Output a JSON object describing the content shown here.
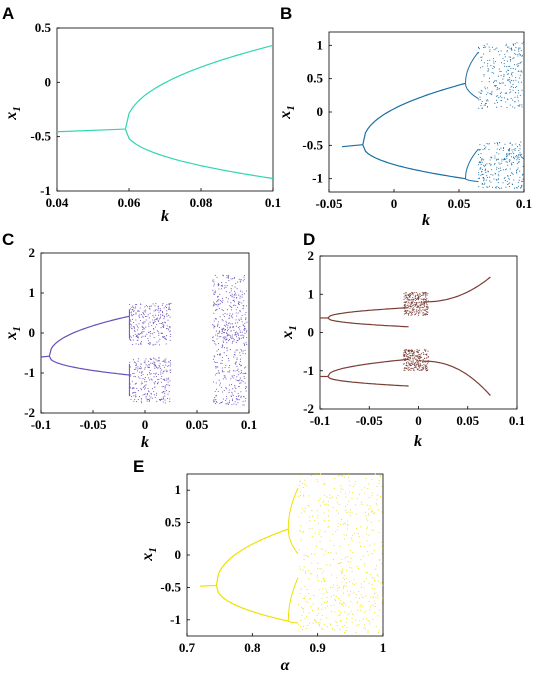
{
  "chart_data": [
    {
      "panel": "A",
      "type": "bifurcation",
      "xlabel": "k",
      "ylabel": "x",
      "ylabel_sub": "1",
      "xlim": [
        0.04,
        0.1
      ],
      "ylim": [
        -1,
        0.5
      ],
      "xticks": [
        "0.04",
        "0.06",
        "0.08",
        "0.1"
      ],
      "yticks": [
        "0.5",
        "0",
        "-0.5",
        "-1"
      ],
      "color": "#2fd6b0",
      "period1": {
        "x_start": 0.04,
        "x_end": 0.059,
        "y_start": -0.455,
        "y_end": -0.43
      },
      "branch_point": 0.059,
      "upper": {
        "x_end": 0.1,
        "y_end": 0.34
      },
      "lower": {
        "x_end": 0.1,
        "y_end": -0.885
      },
      "chaos": []
    },
    {
      "panel": "B",
      "type": "bifurcation",
      "xlabel": "k",
      "ylabel": "x",
      "ylabel_sub": "1",
      "xlim": [
        -0.05,
        0.1
      ],
      "ylim": [
        -1.2,
        1.2
      ],
      "xticks": [
        "-0.05",
        "0",
        "0.05",
        "0.1"
      ],
      "yticks": [
        "1",
        "0.5",
        "0",
        "-0.5",
        "-1"
      ],
      "color": "#1a6fa6",
      "period1": {
        "x_start": -0.04,
        "x_end": -0.024,
        "y_start": -0.52,
        "y_end": -0.49
      },
      "branch_point": -0.024,
      "upper": {
        "x_end": 0.055,
        "y_end": 0.43
      },
      "lower": {
        "x_end": 0.055,
        "y_end": -1.0
      },
      "second_split": 0.055,
      "chaos": [
        {
          "x_start": 0.065,
          "x_end": 0.1,
          "upper": [
            0.05,
            1.05
          ],
          "lower": [
            -1.15,
            -0.45
          ]
        }
      ]
    },
    {
      "panel": "C",
      "type": "bifurcation",
      "xlabel": "k",
      "ylabel": "x",
      "ylabel_sub": "1",
      "xlim": [
        -0.1,
        0.1
      ],
      "ylim": [
        -2,
        2
      ],
      "xticks": [
        "-0.1",
        "-0.05",
        "0",
        "0.05",
        "0.1"
      ],
      "yticks": [
        "2",
        "1",
        "0",
        "-1",
        "-2"
      ],
      "color": "#6a50b8",
      "period1": {
        "x_start": -0.1,
        "x_end": -0.092,
        "y_start": -0.6,
        "y_end": -0.58
      },
      "branch_point": -0.092,
      "upper": {
        "x_end": -0.015,
        "y_end": 0.42
      },
      "lower": {
        "x_end": -0.015,
        "y_end": -1.05
      },
      "second_split": -0.015,
      "chaos": [
        {
          "x_start": -0.015,
          "x_end": 0.025,
          "upper": [
            -0.3,
            0.75
          ],
          "lower": [
            -1.75,
            -0.6
          ]
        },
        {
          "x_start": 0.065,
          "x_end": 0.098,
          "upper": [
            -0.3,
            1.45
          ],
          "lower": [
            -1.8,
            0.2
          ]
        }
      ]
    },
    {
      "panel": "D",
      "type": "bifurcation",
      "xlabel": "k",
      "ylabel": "x",
      "ylabel_sub": "1",
      "xlim": [
        -0.1,
        0.1
      ],
      "ylim": [
        -2,
        2
      ],
      "xticks": [
        "-0.1",
        "-0.05",
        "0",
        "0.05",
        "0.1"
      ],
      "yticks": [
        "2",
        "1",
        "0",
        "-1",
        "-2"
      ],
      "color": "#7a3e35",
      "period1": {
        "x_start": -0.1,
        "x_end": -0.092,
        "y_start": 0.38,
        "y_end": 0.38
      },
      "branch_point": -0.092,
      "upper": {
        "x_end": -0.01,
        "y_end": 0.65
      },
      "lower": {
        "x_end": -0.01,
        "y_end": 0.15
      },
      "lower_band": {
        "period1_y": -1.15,
        "upper_end": -0.7,
        "lower_end": -1.4
      },
      "right_branches": {
        "x_start": 0.005,
        "x_end": 0.073,
        "upper_y": [
          0.8,
          1.45
        ],
        "lower_y": [
          -0.75,
          -1.65
        ]
      },
      "chaos": [
        {
          "x_start": -0.015,
          "x_end": 0.01,
          "upper": [
            0.45,
            1.05
          ],
          "lower": [
            -1.0,
            -0.45
          ]
        }
      ]
    },
    {
      "panel": "E",
      "type": "bifurcation",
      "xlabel": "α",
      "ylabel": "x",
      "ylabel_sub": "1",
      "xlim": [
        0.7,
        1.0
      ],
      "ylim": [
        -1.25,
        1.25
      ],
      "xticks": [
        "0.7",
        "0.8",
        "0.9",
        "1"
      ],
      "yticks": [
        "1",
        "0.5",
        "0",
        "-0.5",
        "-1"
      ],
      "color": "#f0e000",
      "period1": {
        "x_start": 0.72,
        "x_end": 0.745,
        "y_start": -0.48,
        "y_end": -0.47
      },
      "branch_point": 0.745,
      "upper": {
        "x_end": 0.855,
        "y_end": 0.4
      },
      "lower": {
        "x_end": 0.855,
        "y_end": -1.02
      },
      "second_split": 0.855,
      "chaos": [
        {
          "x_start": 0.87,
          "x_end": 1.0,
          "upper": [
            -0.2,
            1.25
          ],
          "lower": [
            -1.2,
            -0.2
          ]
        }
      ]
    }
  ],
  "panel_labels": [
    "A",
    "B",
    "C",
    "D",
    "E"
  ]
}
